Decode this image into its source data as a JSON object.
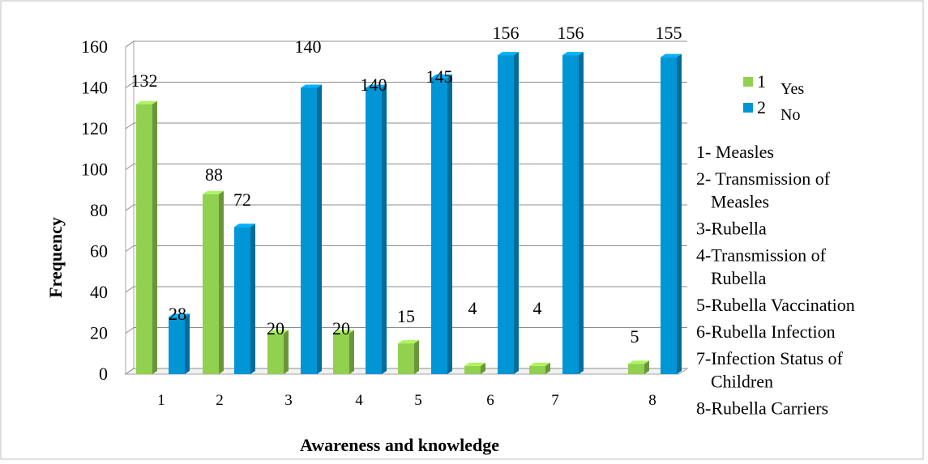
{
  "chart_data": {
    "type": "bar",
    "title": "",
    "xlabel": "Awareness and knowledge",
    "ylabel": "Frequency",
    "ylim": [
      0,
      160
    ],
    "y_ticks": [
      0,
      20,
      40,
      60,
      80,
      100,
      120,
      140,
      160
    ],
    "grid": true,
    "categories": [
      "1",
      "2",
      "3",
      "4",
      "5",
      "6",
      "7",
      "8"
    ],
    "series": [
      {
        "name": "Yes",
        "legend_number": "1",
        "color": "#92d050",
        "values": [
          132,
          88,
          20,
          20,
          15,
          4,
          4,
          5
        ]
      },
      {
        "name": "No",
        "legend_number": "2",
        "color": "#0096d6",
        "values": [
          28,
          72,
          140,
          140,
          145,
          156,
          156,
          155
        ]
      }
    ],
    "legend_position": "right",
    "category_key": [
      [
        "1- Measles"
      ],
      [
        "2- Transmission of",
        "Measles"
      ],
      [
        "3-Rubella"
      ],
      [
        "4-Transmission of",
        "Rubella"
      ],
      [
        "5-Rubella Vaccination"
      ],
      [
        "6-Rubella Infection"
      ],
      [
        "7-Infection Status of",
        "Children"
      ],
      [
        "8-Rubella Carriers"
      ]
    ]
  }
}
